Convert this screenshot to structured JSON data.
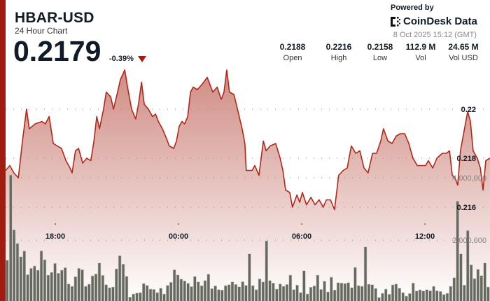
{
  "header": {
    "title": "HBAR-USD",
    "subtitle": "24 Hour Chart",
    "price": "0.2179",
    "change": "-0.39%",
    "change_direction": "down",
    "down_color": "#a01c10"
  },
  "branding": {
    "powered_by": "Powered by",
    "logo_text": "CoinDesk Data",
    "timestamp": "8 Oct 2025 15:12 (GMT)"
  },
  "stats": [
    {
      "value": "0.2188",
      "label": "Open"
    },
    {
      "value": "0.2216",
      "label": "High"
    },
    {
      "value": "0.2158",
      "label": "Low"
    },
    {
      "value": "112.9 M",
      "label": "Vol"
    },
    {
      "value": "24.65 M",
      "label": "Vol USD"
    }
  ],
  "chart_data": {
    "type": "area",
    "line_color": "#b0281a",
    "volume_color": "#66685f",
    "price_ticks": [
      {
        "value": 0.22,
        "label": "0.22"
      },
      {
        "value": 0.218,
        "label": "0.218"
      },
      {
        "value": 0.216,
        "label": "0.216"
      }
    ],
    "volume_ticks": [
      {
        "value": 4000000,
        "label": "4,000,000"
      },
      {
        "value": 2000000,
        "label": "2,000,000"
      }
    ],
    "time_ticks": [
      "18:00",
      "00:00",
      "06:00",
      "12:00"
    ],
    "grid": "dotted",
    "price_series": [
      [
        "15:35",
        0.2175
      ],
      [
        "15:47",
        0.2177
      ],
      [
        "15:59",
        0.2174
      ],
      [
        "16:12",
        0.2172
      ],
      [
        "16:24",
        0.2187
      ],
      [
        "16:36",
        0.22
      ],
      [
        "16:44",
        0.2192
      ],
      [
        "17:01",
        0.2194
      ],
      [
        "17:21",
        0.2195
      ],
      [
        "17:31",
        0.2194
      ],
      [
        "17:42",
        0.2197
      ],
      [
        "17:54",
        0.2186
      ],
      [
        "18:06",
        0.2185
      ],
      [
        "18:18",
        0.2184
      ],
      [
        "18:31",
        0.2179
      ],
      [
        "18:43",
        0.2176
      ],
      [
        "18:49",
        0.2174
      ],
      [
        "18:59",
        0.2183
      ],
      [
        "19:08",
        0.2184
      ],
      [
        "19:20",
        0.2178
      ],
      [
        "19:32",
        0.218
      ],
      [
        "19:44",
        0.2179
      ],
      [
        "19:53",
        0.2187
      ],
      [
        "20:01",
        0.2197
      ],
      [
        "20:09",
        0.2192
      ],
      [
        "20:21",
        0.22
      ],
      [
        "20:29",
        0.2207
      ],
      [
        "20:42",
        0.2205
      ],
      [
        "20:50",
        0.22
      ],
      [
        "21:02",
        0.2207
      ],
      [
        "21:10",
        0.2212
      ],
      [
        "21:23",
        0.2216
      ],
      [
        "21:31",
        0.2209
      ],
      [
        "21:43",
        0.22
      ],
      [
        "21:55",
        0.2196
      ],
      [
        "22:03",
        0.2202
      ],
      [
        "22:12",
        0.2211
      ],
      [
        "22:20",
        0.2202
      ],
      [
        "22:32",
        0.22
      ],
      [
        "22:44",
        0.2197
      ],
      [
        "22:53",
        0.2198
      ],
      [
        "23:01",
        0.2195
      ],
      [
        "23:13",
        0.2192
      ],
      [
        "23:25",
        0.2188
      ],
      [
        "23:33",
        0.2185
      ],
      [
        "23:46",
        0.2184
      ],
      [
        "23:54",
        0.2187
      ],
      [
        "00:02",
        0.2193
      ],
      [
        "00:10",
        0.2195
      ],
      [
        "00:18",
        0.2194
      ],
      [
        "00:27",
        0.2197
      ],
      [
        "00:35",
        0.2207
      ],
      [
        "00:43",
        0.2209
      ],
      [
        "00:55",
        0.2208
      ],
      [
        "01:08",
        0.221
      ],
      [
        "01:24",
        0.2213
      ],
      [
        "01:40",
        0.2207
      ],
      [
        "01:53",
        0.2209
      ],
      [
        "02:05",
        0.2204
      ],
      [
        "02:13",
        0.2207
      ],
      [
        "02:21",
        0.2216
      ],
      [
        "02:29",
        0.2207
      ],
      [
        "02:42",
        0.2206
      ],
      [
        "02:54",
        0.2199
      ],
      [
        "03:06",
        0.2192
      ],
      [
        "03:14",
        0.2186
      ],
      [
        "03:18",
        0.2175
      ],
      [
        "03:35",
        0.2175
      ],
      [
        "03:43",
        0.2177
      ],
      [
        "03:55",
        0.2173
      ],
      [
        "04:08",
        0.2187
      ],
      [
        "04:16",
        0.2183
      ],
      [
        "04:28",
        0.2185
      ],
      [
        "04:44",
        0.2186
      ],
      [
        "04:57",
        0.218
      ],
      [
        "05:05",
        0.2175
      ],
      [
        "05:13",
        0.2167
      ],
      [
        "05:25",
        0.2166
      ],
      [
        "05:33",
        0.216
      ],
      [
        "05:46",
        0.2165
      ],
      [
        "05:54",
        0.2162
      ],
      [
        "06:02",
        0.2166
      ],
      [
        "06:14",
        0.2161
      ],
      [
        "06:27",
        0.2164
      ],
      [
        "06:39",
        0.2161
      ],
      [
        "06:51",
        0.2163
      ],
      [
        "07:03",
        0.216
      ],
      [
        "07:12",
        0.2163
      ],
      [
        "07:24",
        0.2163
      ],
      [
        "07:36",
        0.2159
      ],
      [
        "07:48",
        0.2173
      ],
      [
        "08:01",
        0.2175
      ],
      [
        "08:13",
        0.2176
      ],
      [
        "08:25",
        0.2185
      ],
      [
        "08:38",
        0.2182
      ],
      [
        "08:50",
        0.2183
      ],
      [
        "09:02",
        0.2176
      ],
      [
        "09:14",
        0.2174
      ],
      [
        "09:27",
        0.2182
      ],
      [
        "09:39",
        0.2182
      ],
      [
        "09:51",
        0.2187
      ],
      [
        "09:59",
        0.2192
      ],
      [
        "10:12",
        0.2187
      ],
      [
        "10:24",
        0.2186
      ],
      [
        "10:36",
        0.2189
      ],
      [
        "10:48",
        0.219
      ],
      [
        "11:01",
        0.219
      ],
      [
        "11:13",
        0.2186
      ],
      [
        "11:25",
        0.218
      ],
      [
        "11:38",
        0.2177
      ],
      [
        "11:50",
        0.2177
      ],
      [
        "12:02",
        0.2177
      ],
      [
        "12:10",
        0.2179
      ],
      [
        "12:23",
        0.2176
      ],
      [
        "12:35",
        0.218
      ],
      [
        "12:51",
        0.2182
      ],
      [
        "13:03",
        0.2182
      ],
      [
        "13:12",
        0.2183
      ],
      [
        "13:20",
        0.2173
      ],
      [
        "13:28",
        0.2172
      ],
      [
        "13:36",
        0.2169
      ],
      [
        "13:44",
        0.2183
      ],
      [
        "13:57",
        0.2193
      ],
      [
        "14:05",
        0.2199
      ],
      [
        "14:13",
        0.2195
      ],
      [
        "14:21",
        0.2183
      ],
      [
        "14:33",
        0.218
      ],
      [
        "14:42",
        0.2176
      ],
      [
        "14:50",
        0.2167
      ],
      [
        "14:58",
        0.2179
      ],
      [
        "15:10",
        0.218
      ]
    ],
    "volume_series": [
      1355000,
      4090000,
      2330000,
      1895000,
      1468000,
      1648000,
      892000,
      1094000,
      1168000,
      1034000,
      1655000,
      1371000,
      876000,
      966000,
      1251000,
      936000,
      1034000,
      1116000,
      592000,
      517000,
      824000,
      1094000,
      1049000,
      517000,
      584000,
      854000,
      914000,
      1266000,
      869000,
      569000,
      472000,
      494000,
      1079000,
      1498000,
      1229000,
      839000,
      172000,
      270000,
      300000,
      315000,
      607000,
      547000,
      427000,
      419000,
      315000,
      457000,
      270000,
      547000,
      644000,
      1049000,
      884000,
      749000,
      689000,
      614000,
      509000,
      831000,
      659000,
      539000,
      704000,
      906000,
      442000,
      532000,
      412000,
      397000,
      539000,
      569000,
      659000,
      577000,
      502000,
      667000,
      547000,
      1558000,
      539000,
      412000,
      756000,
      659000,
      1977000,
      704000,
      622000,
      427000,
      592000,
      517000,
      577000,
      876000,
      412000,
      554000,
      315000,
      1019000,
      270000,
      487000,
      532000,
      876000,
      419000,
      682000,
      337000,
      809000,
      397000,
      637000,
      622000,
      607000,
      637000,
      472000,
      1124000,
      539000,
      517000,
      1783000,
      584000,
      569000,
      449000,
      157000,
      292000,
      427000,
      262000,
      562000,
      592000,
      457000,
      315000,
      202000,
      285000,
      622000,
      367000,
      404000,
      367000,
      412000,
      374000,
      517000,
      374000,
      352000,
      255000,
      292000,
      517000,
      794000,
      3251000,
      1558000,
      554000,
      2307000,
      1206000,
      764000,
      1064000,
      861000,
      1266000,
      494000
    ]
  }
}
